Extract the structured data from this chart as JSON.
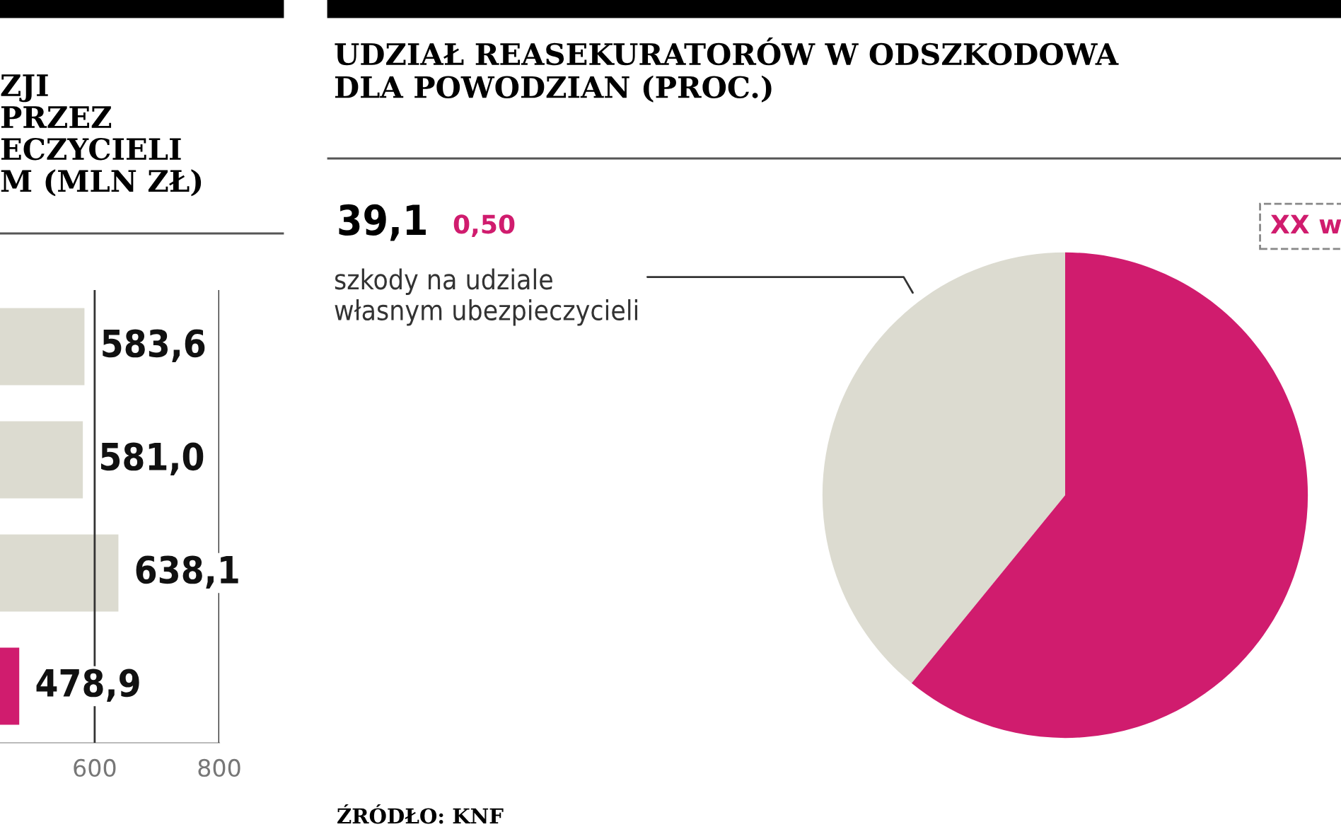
{
  "chart_data": [
    {
      "type": "bar",
      "orientation": "horizontal",
      "title": "ZJI\nPRZEZ\nECZYCIELI\nM (MLN ZŁ)",
      "categories": [
        null,
        null,
        null,
        null
      ],
      "values": [
        583.6,
        581.0,
        638.1,
        478.9
      ],
      "colors": [
        "#dcdbd0",
        "#dcdbd0",
        "#dcdbd0",
        "#d01c6e"
      ],
      "value_labels": [
        "583,6",
        "581,0",
        "638,1",
        "478,9"
      ],
      "xlim": [
        448,
        800
      ],
      "xticks": [
        600,
        800
      ],
      "grid": "x"
    },
    {
      "type": "pie",
      "title": "UDZIAŁ REASEKURATORÓW W ODSZKODOWA\nDLA POWODZIAN (PROC.)",
      "categories": [
        "szkody na udziale\nwłasnym ubezpieczycieli",
        null
      ],
      "values": [
        39.1,
        60.9
      ],
      "colors": [
        "#dcdbd0",
        "#d01c6e"
      ],
      "value_labels": [
        "39,1",
        null
      ],
      "annotations": [
        "0,50",
        "XX w",
        "ŹRÓDŁO: KNF"
      ]
    }
  ]
}
